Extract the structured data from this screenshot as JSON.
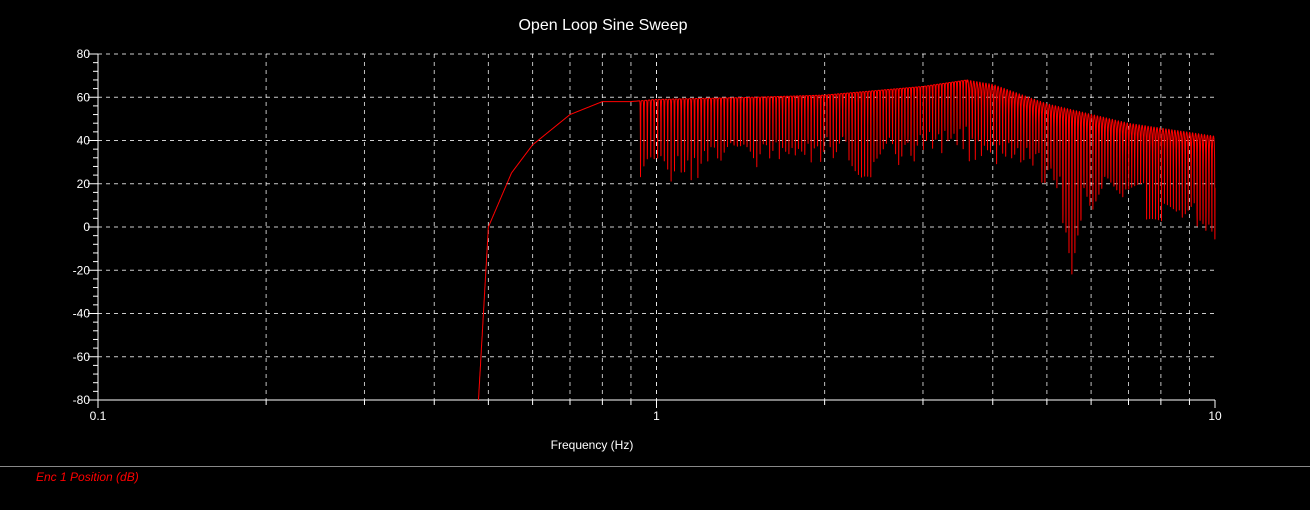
{
  "chart_data": {
    "type": "line",
    "title": "Open Loop Sine Sweep",
    "xlabel": "Frequency (Hz)",
    "ylabel": "",
    "xscale": "log",
    "xlim": [
      0.1,
      10
    ],
    "ylim": [
      -80,
      80
    ],
    "xticks": [
      0.1,
      1,
      10
    ],
    "xtick_labels": [
      "0.1",
      "1",
      "10"
    ],
    "yticks": [
      -80,
      -60,
      -40,
      -20,
      0,
      20,
      40,
      60,
      80
    ],
    "ytick_labels": [
      "-80",
      "-60",
      "-40",
      "-20",
      "0",
      "20",
      "40",
      "60",
      "80"
    ],
    "grid": true,
    "legend_placement": "bottom-left",
    "colors": {
      "background": "#000000",
      "series": "#ff0000",
      "grid": "#ffffff"
    },
    "series": [
      {
        "name": "Enc 1 Position (dB)",
        "envelope_x": [
          0.48,
          0.5,
          0.55,
          0.6,
          0.7,
          0.8,
          0.9,
          1.0,
          1.5,
          2.0,
          3.0,
          3.6,
          4.0,
          5.0,
          7.0,
          10.0
        ],
        "envelope_y": [
          -80,
          0,
          25,
          38,
          52,
          58,
          58,
          59,
          60,
          61,
          65,
          68,
          66,
          57,
          48,
          42
        ],
        "notch_x": [
          0.97,
          1.13,
          1.3,
          1.45,
          1.6,
          1.75,
          1.9,
          2.1,
          2.3,
          2.55,
          2.8,
          3.1,
          3.4,
          3.8,
          4.2,
          4.6,
          5.1,
          5.55,
          6.0,
          6.6,
          7.2,
          7.8,
          8.4,
          9.0,
          9.5,
          9.8
        ],
        "notch_y": [
          20,
          20,
          29,
          27,
          30,
          29,
          29,
          31,
          23,
          29,
          28,
          34,
          35,
          38,
          37,
          35,
          25,
          -14,
          15,
          20,
          25,
          5,
          15,
          10,
          -8,
          0
        ]
      }
    ]
  }
}
